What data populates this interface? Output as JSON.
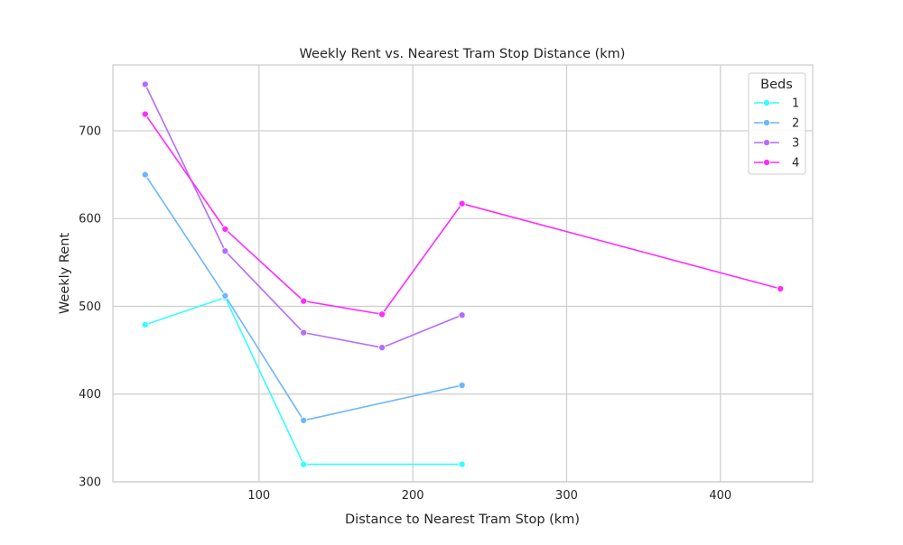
{
  "chart_data": {
    "type": "line",
    "title": "Weekly Rent vs. Nearest Tram Stop Distance (km)",
    "xlabel": "Distance to Nearest Tram Stop (km)",
    "ylabel": "Weekly Rent",
    "xlim": [
      5,
      460
    ],
    "ylim": [
      300,
      775
    ],
    "xticks": [
      100,
      200,
      300,
      400
    ],
    "yticks": [
      300,
      400,
      500,
      600,
      700
    ],
    "grid": true,
    "legend": {
      "title": "Beds",
      "placement": "top-right"
    },
    "series": [
      {
        "name": "1",
        "color": "#33ffff",
        "points": [
          [
            26,
            479
          ],
          [
            78,
            510
          ],
          [
            129,
            320
          ],
          [
            232,
            320
          ]
        ]
      },
      {
        "name": "2",
        "color": "#6bb6ff",
        "points": [
          [
            26,
            650
          ],
          [
            78,
            512
          ],
          [
            129,
            370
          ],
          [
            232,
            410
          ]
        ]
      },
      {
        "name": "3",
        "color": "#b56cff",
        "points": [
          [
            26,
            753
          ],
          [
            78,
            563
          ],
          [
            129,
            470
          ],
          [
            180,
            453
          ],
          [
            232,
            490
          ]
        ]
      },
      {
        "name": "4",
        "color": "#ff2bff",
        "points": [
          [
            26,
            719
          ],
          [
            78,
            588
          ],
          [
            129,
            506
          ],
          [
            180,
            491
          ],
          [
            232,
            617
          ],
          [
            439,
            520
          ]
        ]
      }
    ]
  }
}
